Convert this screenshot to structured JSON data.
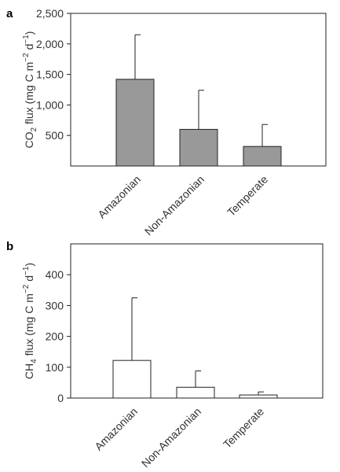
{
  "chart_data": [
    {
      "type": "bar",
      "panel": "a",
      "categories": [
        "Amazonian",
        "Non-Amazonian",
        "Temperate"
      ],
      "values": [
        1420,
        600,
        320
      ],
      "error_upper": [
        2150,
        1240,
        680
      ],
      "ylabel_parts": [
        "CO",
        "2",
        " flux (mg C m",
        "−2",
        " d",
        "−1",
        ")"
      ],
      "ylim": [
        0,
        2500
      ],
      "yticks": [
        500,
        1000,
        1500,
        2000,
        2500
      ],
      "ytick_labels": [
        "500",
        "1,000",
        "1,500",
        "2,000",
        "2,500"
      ],
      "bar_color": "#999999",
      "grid": false
    },
    {
      "type": "bar",
      "panel": "b",
      "categories": [
        "Amazonian",
        "Non-Amazonian",
        "Temperate"
      ],
      "values": [
        122,
        35,
        10
      ],
      "error_upper": [
        325,
        88,
        20
      ],
      "ylabel_parts": [
        "CH",
        "4",
        " flux (mg C m",
        "−2",
        " d",
        "−1",
        ")"
      ],
      "ylim": [
        0,
        500
      ],
      "yticks": [
        0,
        100,
        200,
        300,
        400
      ],
      "ytick_labels": [
        "0",
        "100",
        "200",
        "300",
        "400"
      ],
      "bar_color": "#ffffff",
      "grid": false
    }
  ]
}
